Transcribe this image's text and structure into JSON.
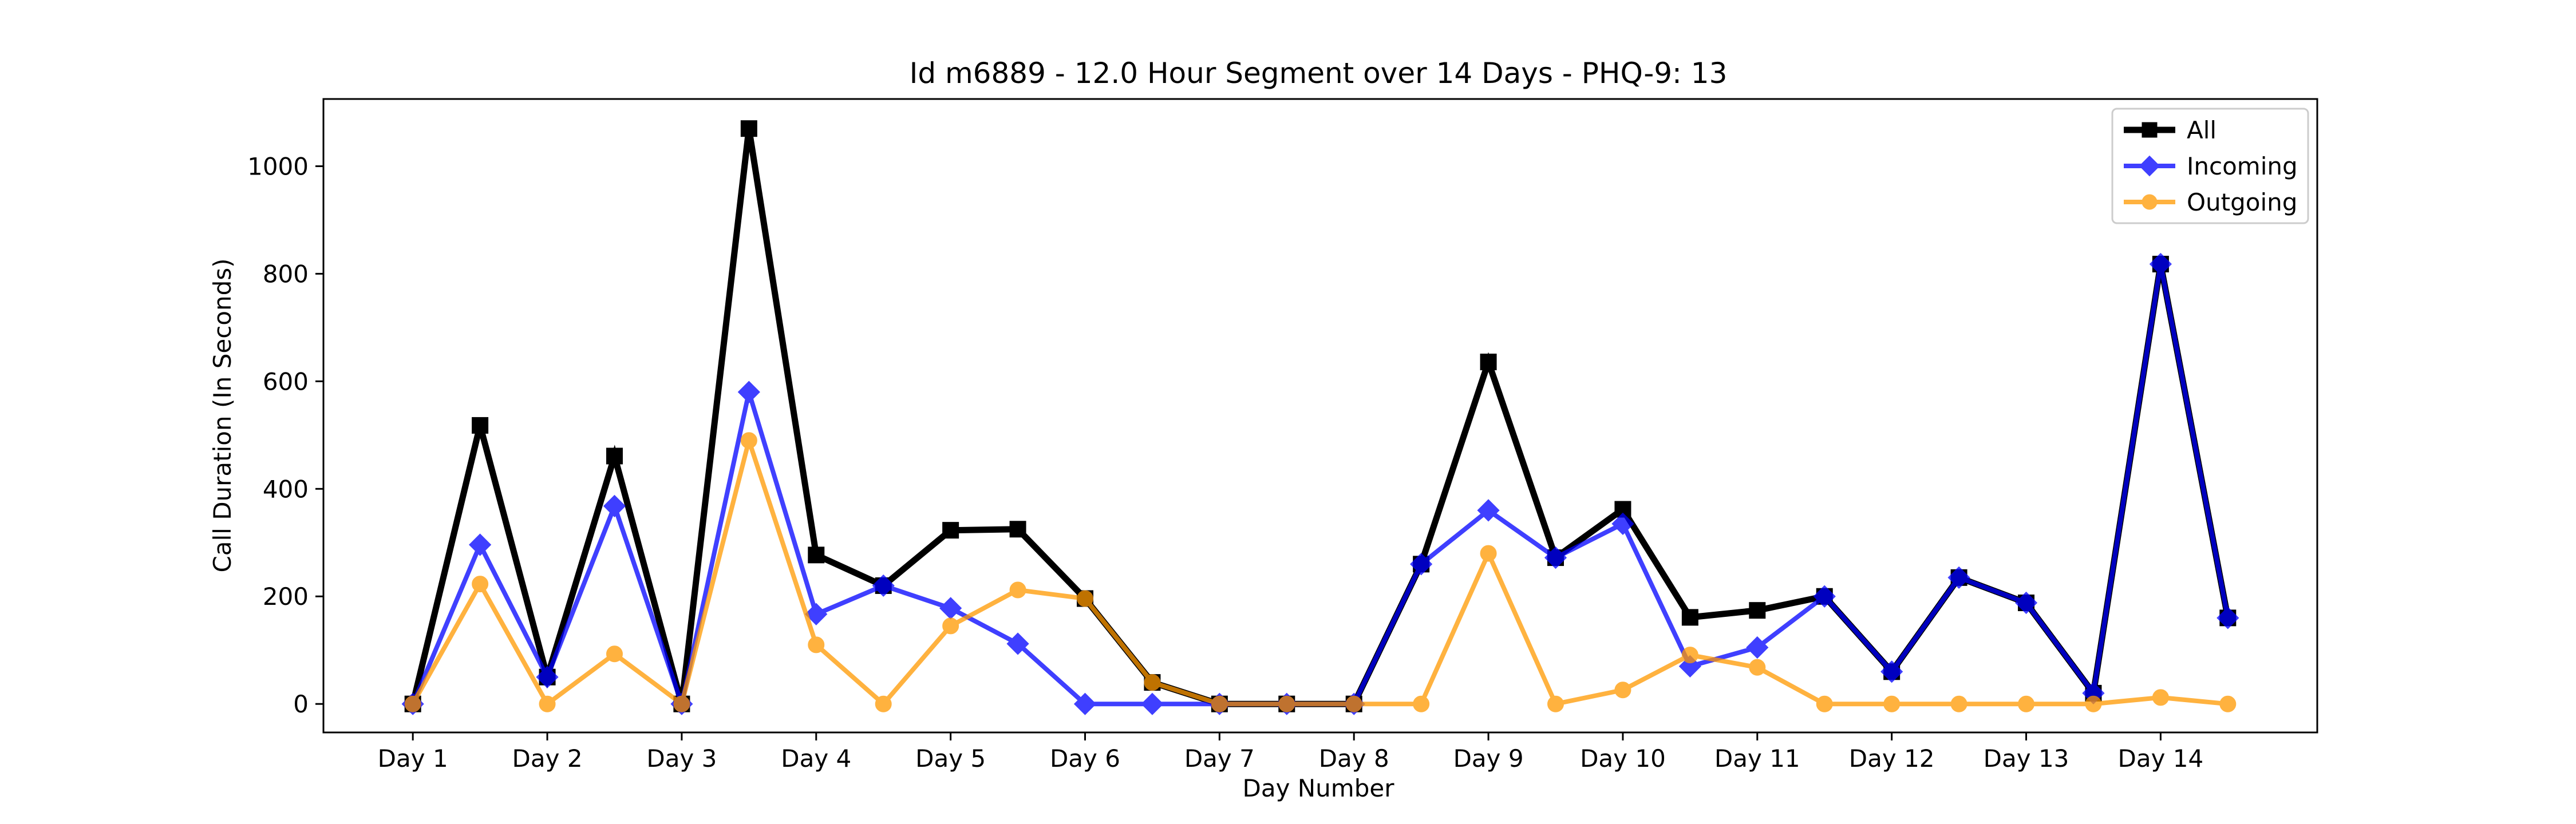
{
  "chart_data": {
    "type": "line",
    "title": "Id m6889 - 12.0 Hour Segment over 14 Days - PHQ-9: 13",
    "xlabel": "Day Number",
    "ylabel": "Call Duration (In Seconds)",
    "x_ticks": [
      "Day 1",
      "Day 2",
      "Day 3",
      "Day 4",
      "Day 5",
      "Day 6",
      "Day 7",
      "Day 8",
      "Day 9",
      "Day 10",
      "Day 11",
      "Day 12",
      "Day 13",
      "Day 14"
    ],
    "y_ticks": [
      0,
      200,
      400,
      600,
      800,
      1000
    ],
    "xlim": [
      -0.665,
      14.165
    ],
    "ylim": [
      -53,
      1125
    ],
    "x": [
      0,
      0.5,
      1,
      1.5,
      2,
      2.5,
      3,
      3.5,
      4,
      4.5,
      5,
      5.5,
      6,
      6.5,
      7,
      7.5,
      8,
      8.5,
      9,
      9.5,
      10,
      10.5,
      11,
      11.5,
      12,
      12.5,
      13,
      13.5
    ],
    "series": [
      {
        "name": "All",
        "color": "#000000",
        "marker": "square",
        "values": [
          0,
          518,
          50,
          461,
          0,
          1070,
          277,
          220,
          323,
          325,
          196,
          40,
          0,
          0,
          0,
          260,
          636,
          272,
          362,
          161,
          174,
          200,
          60,
          235,
          188,
          20,
          818,
          160
        ]
      },
      {
        "name": "Incoming",
        "color": "#0000ff",
        "marker": "diamond",
        "values": [
          0,
          296,
          50,
          368,
          0,
          580,
          167,
          220,
          178,
          112,
          0,
          0,
          0,
          0,
          0,
          260,
          360,
          272,
          335,
          70,
          105,
          200,
          60,
          235,
          188,
          20,
          818,
          160
        ]
      },
      {
        "name": "Outgoing",
        "color": "#ff9900",
        "marker": "circle",
        "values": [
          0,
          223,
          0,
          93,
          0,
          490,
          110,
          0,
          145,
          212,
          196,
          40,
          0,
          0,
          0,
          0,
          280,
          0,
          26,
          91,
          68,
          0,
          0,
          0,
          0,
          0,
          12,
          0
        ]
      }
    ],
    "legend_position": "top-right",
    "grid": false
  }
}
